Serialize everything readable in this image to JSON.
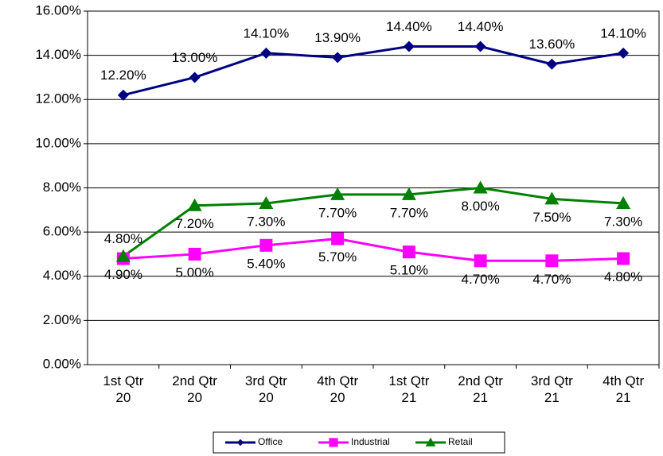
{
  "chart_data": {
    "type": "line",
    "categories": [
      "1st Qtr 20",
      "2nd Qtr 20",
      "3rd Qtr 20",
      "4th Qtr 20",
      "1st Qtr 21",
      "2nd Qtr 21",
      "3rd Qtr 21",
      "4th Qtr 21"
    ],
    "series": [
      {
        "name": "Office",
        "color": "#000080",
        "marker": "diamond",
        "label_position": "above",
        "values": [
          12.2,
          13.0,
          14.1,
          13.9,
          14.4,
          14.4,
          13.6,
          14.1
        ],
        "value_labels": [
          "12.20%",
          "13.00%",
          "14.10%",
          "13.90%",
          "14.40%",
          "14.40%",
          "13.60%",
          "14.10%"
        ]
      },
      {
        "name": "Industrial",
        "color": "#ff00ff",
        "marker": "square",
        "label_position": "below",
        "values": [
          4.8,
          5.0,
          5.4,
          5.7,
          5.1,
          4.7,
          4.7,
          4.8
        ],
        "value_labels": [
          "4.80%",
          "5.00%",
          "5.40%",
          "5.70%",
          "5.10%",
          "4.70%",
          "4.70%",
          "4.80%"
        ]
      },
      {
        "name": "Retail",
        "color": "#008000",
        "marker": "triangle",
        "label_position": "below",
        "values": [
          4.9,
          7.2,
          7.3,
          7.7,
          7.7,
          8.0,
          7.5,
          7.3
        ],
        "value_labels": [
          "4.90%",
          "7.20%",
          "7.30%",
          "7.70%",
          "7.70%",
          "8.00%",
          "7.50%",
          "7.30%"
        ]
      }
    ],
    "ylim": [
      0,
      16
    ],
    "yticks": [
      {
        "value": 0,
        "label": "0.00%"
      },
      {
        "value": 2,
        "label": "2.00%"
      },
      {
        "value": 4,
        "label": "4.00%"
      },
      {
        "value": 6,
        "label": "6.00%"
      },
      {
        "value": 8,
        "label": "8.00%"
      },
      {
        "value": 10,
        "label": "10.00%"
      },
      {
        "value": 12,
        "label": "12.00%"
      },
      {
        "value": 14,
        "label": "14.00%"
      },
      {
        "value": 16,
        "label": "16.00%"
      }
    ],
    "grid": true,
    "legend": "bottom"
  }
}
